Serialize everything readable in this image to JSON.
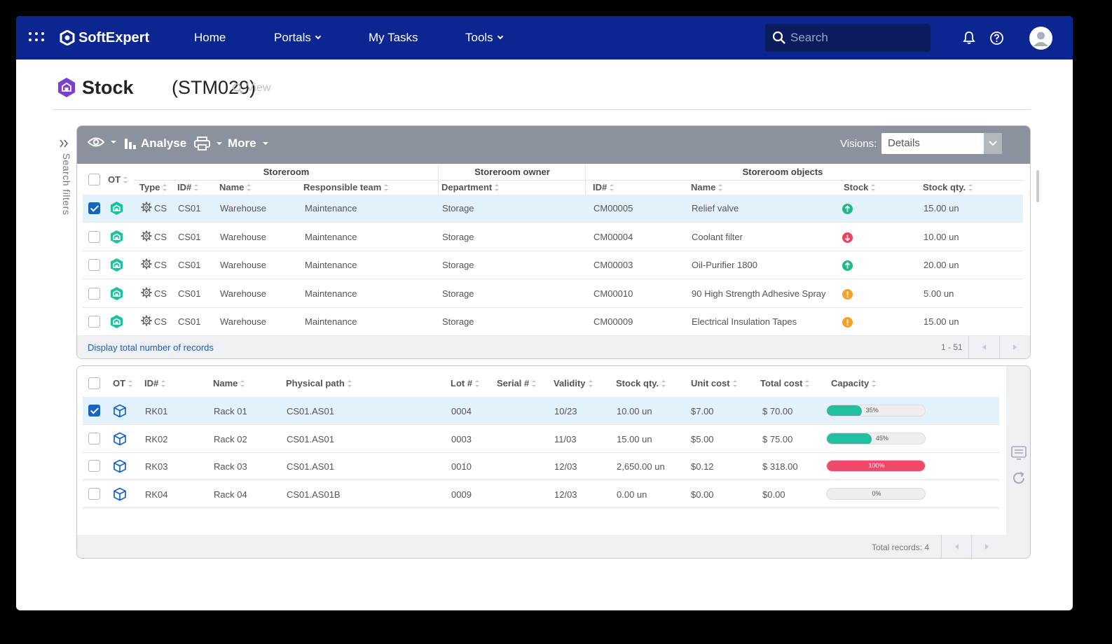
{
  "nav": {
    "brand": "SoftExpert",
    "home": "Home",
    "portals": "Portals",
    "my_tasks": "My Tasks",
    "tools": "Tools",
    "search_placeholder": "Search"
  },
  "page": {
    "title": "Stock",
    "code": "(STM029)",
    "view_label": "View",
    "search_filters": "Search filters"
  },
  "toolbar": {
    "analyse": "Analyse",
    "more": "More",
    "visions_label": "Visions:",
    "visions_value": "Details"
  },
  "table1": {
    "groups": {
      "storeroom": "Storeroom",
      "owner": "Storeroom owner",
      "objects": "Storeroom objects"
    },
    "headers": {
      "ot": "OT",
      "type": "Type",
      "id": "ID#",
      "name": "Name",
      "team": "Responsible team",
      "department": "Department",
      "obj_id": "ID#",
      "obj_name": "Name",
      "stock": "Stock",
      "stock_qty": "Stock qty."
    },
    "rows": [
      {
        "type": "CS",
        "id": "CS01",
        "name": "Warehouse",
        "team": "Maintenance",
        "department": "Storage",
        "obj_id": "CM00005",
        "obj_name": "Relief valve",
        "stock": "up",
        "qty": "15.00 un",
        "selected": true
      },
      {
        "type": "CS",
        "id": "CS01",
        "name": "Warehouse",
        "team": "Maintenance",
        "department": "Storage",
        "obj_id": "CM00004",
        "obj_name": "Coolant filter",
        "stock": "down",
        "qty": "10.00 un",
        "selected": false
      },
      {
        "type": "CS",
        "id": "CS01",
        "name": "Warehouse",
        "team": "Maintenance",
        "department": "Storage",
        "obj_id": "CM00003",
        "obj_name": "Oil-Purifier 1800",
        "stock": "up",
        "qty": "20.00 un",
        "selected": false
      },
      {
        "type": "CS",
        "id": "CS01",
        "name": "Warehouse",
        "team": "Maintenance",
        "department": "Storage",
        "obj_id": "CM00010",
        "obj_name": "90 High Strength Adhesive Spray",
        "stock": "warn",
        "qty": "5.00 un",
        "selected": false
      },
      {
        "type": "CS",
        "id": "CS01",
        "name": "Warehouse",
        "team": "Maintenance",
        "department": "Storage",
        "obj_id": "CM00009",
        "obj_name": "Electrical Insulation Tapes",
        "stock": "warn",
        "qty": "15.00 un",
        "selected": false
      }
    ],
    "footer_link": "Display total number of records",
    "range": "1 - 51"
  },
  "table2": {
    "headers": {
      "ot": "OT",
      "id": "ID#",
      "name": "Name",
      "path": "Physical path",
      "lot": "Lot #",
      "serial": "Serial #",
      "validity": "Validity",
      "qty": "Stock qty.",
      "unit_cost": "Unit cost",
      "total_cost": "Total cost",
      "capacity": "Capacity"
    },
    "rows": [
      {
        "id": "RK01",
        "name": "Rack 01",
        "path": "CS01.AS01",
        "lot": "0004",
        "serial": "",
        "validity": "10/23",
        "qty": "10.00 un",
        "unit_cost": "$7.00",
        "total_cost": "$ 70.00",
        "capacity": 35,
        "capacity_label": "35%",
        "selected": true
      },
      {
        "id": "RK02",
        "name": "Rack 02",
        "path": "CS01.AS01",
        "lot": "0003",
        "serial": "",
        "validity": "11/03",
        "qty": "15.00 un",
        "unit_cost": "$5.00",
        "total_cost": "$ 75.00",
        "capacity": 45,
        "capacity_label": "45%",
        "selected": false
      },
      {
        "id": "RK03",
        "name": "Rack 03",
        "path": "CS01.AS01",
        "lot": "0010",
        "serial": "",
        "validity": "12/03",
        "qty": "2,650.00 un",
        "unit_cost": "$0.12",
        "total_cost": "$ 318.00",
        "capacity": 100,
        "capacity_label": "100%",
        "selected": false
      },
      {
        "id": "RK04",
        "name": "Rack 04",
        "path": "CS01.AS01B",
        "lot": "0009",
        "serial": "",
        "validity": "12/03",
        "qty": "0.00 un",
        "unit_cost": "$0.00",
        "total_cost": "$0.00",
        "capacity": 0,
        "capacity_label": "0%",
        "selected": false
      }
    ],
    "total_records": "Total records: 4"
  },
  "colors": {
    "nav_bg": "#0b2690",
    "accent": "#1565c0",
    "teal": "#1fbf9f",
    "red": "#f04a6b",
    "orange": "#f5a02a",
    "up": "#22b88a",
    "down": "#e5455e"
  }
}
